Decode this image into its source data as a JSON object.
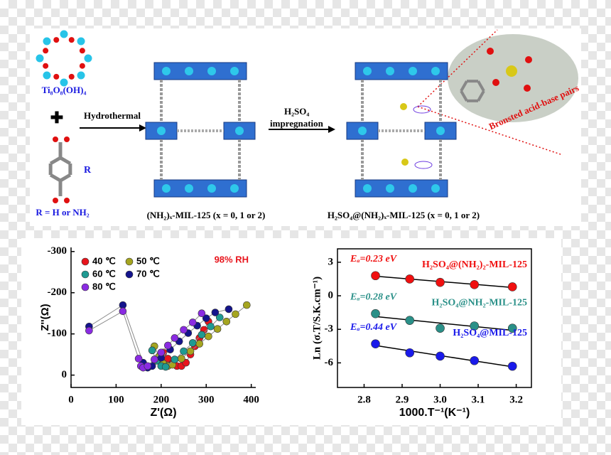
{
  "scheme": {
    "cluster_label": "Ti₈O₈(OH)₄",
    "r_label": "R",
    "r_definition": "R = H or NH₂",
    "step1": "Hydrothermal",
    "step2_reagent": "H₂SO₄",
    "step2": "impregnation",
    "product1": "(NH₂)ₓ-MIL-125 (x = 0, 1 or 2)",
    "product2": "H₂SO₄@(NH₂)ₓ-MIL-125 (x = 0, 1 or 2)",
    "callout": "Bronsted acid-base pairs"
  },
  "chart_data": [
    {
      "type": "scatter",
      "x_label": "Z'(Ω)",
      "y_label": "Z''(Ω)",
      "annotation": "98% RH",
      "xlim": [
        0,
        410
      ],
      "ylim": [
        30,
        -310
      ],
      "xticks": [
        0,
        100,
        200,
        300,
        400
      ],
      "yticks": [
        0,
        -100,
        -200,
        -300
      ],
      "connect": true,
      "line_color": "#8a8a8a",
      "series": [
        {
          "name": "40 ℃",
          "color": "#e8141c",
          "x": [
            205,
            215,
            225,
            235,
            245,
            255,
            265,
            275,
            285,
            295,
            305
          ],
          "values": [
            -55,
            -40,
            -28,
            -22,
            -22,
            -30,
            -50,
            -70,
            -90,
            -110,
            -130
          ]
        },
        {
          "name": "50 ℃",
          "color": "#a5a520",
          "x": [
            185,
            195,
            205,
            215,
            225,
            245,
            265,
            285,
            305,
            325,
            345,
            365,
            390
          ],
          "values": [
            -70,
            -45,
            -28,
            -22,
            -25,
            -40,
            -58,
            -76,
            -94,
            -112,
            -130,
            -148,
            -170
          ]
        },
        {
          "name": "60 ℃",
          "color": "#1f9a92",
          "x": [
            180,
            190,
            200,
            210,
            230,
            250,
            270,
            290,
            310,
            330
          ],
          "values": [
            -60,
            -35,
            -22,
            -20,
            -38,
            -58,
            -78,
            -98,
            -118,
            -140
          ]
        },
        {
          "name": "70 ℃",
          "color": "#14148c",
          "x": [
            40,
            115,
            160,
            170,
            180,
            200,
            220,
            240,
            260,
            280,
            300,
            320,
            350
          ],
          "values": [
            -118,
            -170,
            -30,
            -18,
            -22,
            -42,
            -62,
            -82,
            -102,
            -120,
            -138,
            -152,
            -160
          ]
        },
        {
          "name": "80 ℃",
          "color": "#8a2be2",
          "x": [
            40,
            115,
            150,
            155,
            160,
            170,
            185,
            200,
            215,
            230,
            250,
            270,
            290
          ],
          "values": [
            -108,
            -155,
            -40,
            -22,
            -18,
            -22,
            -38,
            -55,
            -72,
            -90,
            -110,
            -128,
            -150
          ]
        }
      ]
    },
    {
      "type": "scatter",
      "x_label": "1000.T⁻¹(K⁻¹)",
      "y_label": "Ln (σ.T/S.K.cm⁻¹)",
      "xlim": [
        2.73,
        3.24
      ],
      "ylim": [
        -8.2,
        4.2
      ],
      "xticks": [
        2.8,
        2.9,
        {
          "value": 3,
          "label": "3.0"
        },
        3.1,
        3.2
      ],
      "yticks": [
        3,
        0,
        -3,
        -6
      ],
      "fit": true,
      "series": [
        {
          "name": "H₂SO₄@(NH₂)₂-MIL-125",
          "label": "Eₐ=0.23 eV",
          "color": "#f01010",
          "x": [
            2.83,
            2.92,
            3.0,
            3.09,
            3.19
          ],
          "values": [
            1.8,
            1.5,
            1.2,
            1.0,
            0.8
          ]
        },
        {
          "name": "H₂SO₄@NH₂-MIL-125",
          "label": "Eₐ=0.28 eV",
          "color": "#2a9088",
          "x": [
            2.83,
            2.92,
            3.0,
            3.09,
            3.19
          ],
          "values": [
            -1.6,
            -2.2,
            -2.9,
            -2.7,
            -2.9
          ]
        },
        {
          "name": "H₂SO₄@MIL-125",
          "label": "Eₐ=0.44 eV",
          "color": "#1a1aea",
          "x": [
            2.83,
            2.92,
            3.0,
            3.09,
            3.19
          ],
          "values": [
            -4.3,
            -5.1,
            -5.4,
            -5.8,
            -6.3
          ]
        }
      ]
    }
  ]
}
